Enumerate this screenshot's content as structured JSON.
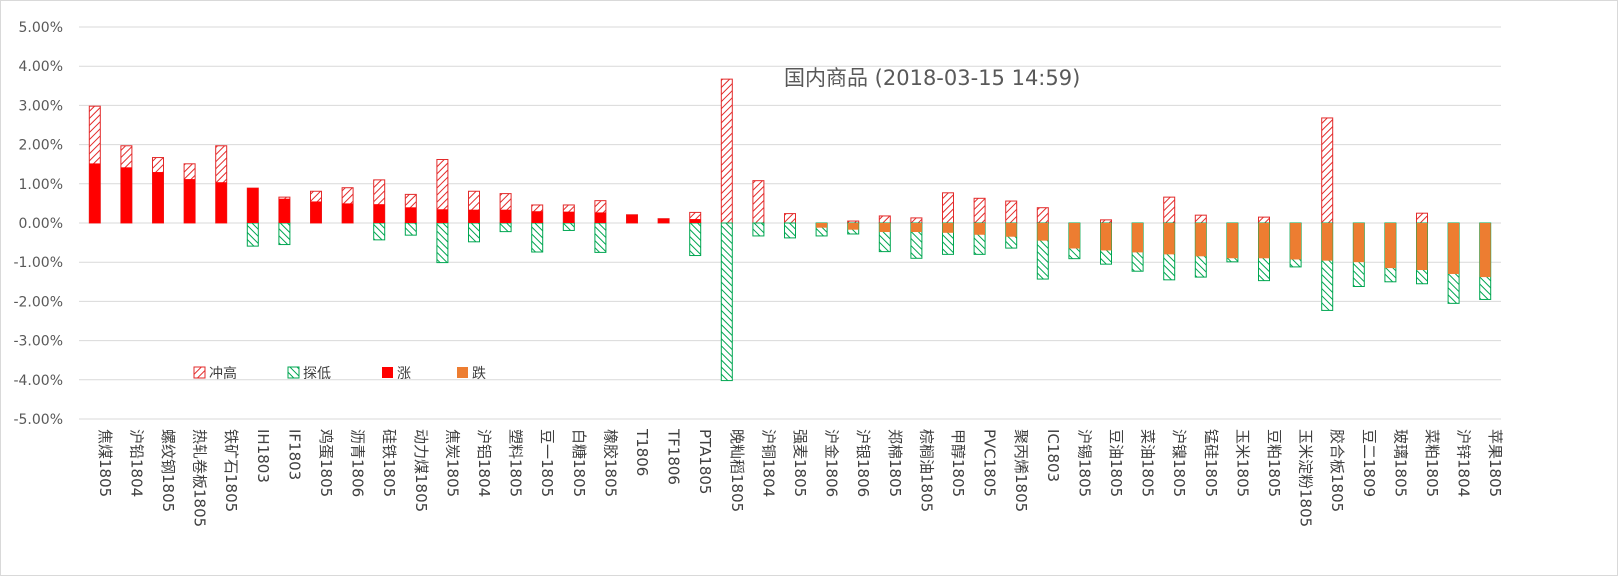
{
  "chart_data": {
    "type": "bar",
    "title": "国内商品 (2018-03-15 14:59)",
    "xlabel": "",
    "ylabel": "",
    "ylim": [
      -0.05,
      0.05
    ],
    "ytick_values": [
      0.05,
      0.04,
      0.03,
      0.02,
      0.01,
      0,
      -0.01,
      -0.02,
      -0.03,
      -0.04,
      -0.05
    ],
    "ytick_labels": [
      "5.00%",
      "4.00%",
      "3.00%",
      "2.00%",
      "1.00%",
      "0.00%",
      "-1.00%",
      "-2.00%",
      "-3.00%",
      "-4.00%",
      "-5.00%"
    ],
    "grid": true,
    "legend_position": "bottom-left",
    "categories": [
      "焦煤1805",
      "沪铅1804",
      "螺纹钢1805",
      "热轧卷板1805",
      "铁矿石1805",
      "IH1803",
      "IF1803",
      "鸡蛋1805",
      "沥青1806",
      "硅铁1805",
      "动力煤1805",
      "焦炭1805",
      "沪铝1804",
      "塑料1805",
      "豆一1805",
      "白糖1805",
      "橡胶1805",
      "T1806",
      "TF1806",
      "PTA1805",
      "晚籼稻1805",
      "沪铜1804",
      "强麦1805",
      "沪金1806",
      "沪银1806",
      "郑棉1805",
      "棕榈油1805",
      "甲醇1805",
      "PVC1805",
      "聚丙烯1805",
      "IC1803",
      "沪锡1805",
      "豆油1805",
      "菜油1805",
      "沪镍1805",
      "锰硅1805",
      "玉米1805",
      "豆粕1805",
      "玉米淀粉1805",
      "胶合板1805",
      "豆二1809",
      "玻璃1805",
      "菜粕1805",
      "沪锌1804",
      "苹果1805"
    ],
    "series": [
      {
        "name": "冲高",
        "pattern": "up-hatch",
        "values": [
          0.0298,
          0.0197,
          0.0167,
          0.0151,
          0.0197,
          0.0089,
          0.0066,
          0.0081,
          0.009,
          0.011,
          0.0073,
          0.0162,
          0.0081,
          0.0075,
          0.0046,
          0.0046,
          0.0057,
          0.0021,
          0.0011,
          0.0027,
          0.0367,
          0.0108,
          0.0024,
          0.0,
          0.0005,
          0.0018,
          0.0013,
          0.0077,
          0.0063,
          0.0056,
          0.0039,
          0.0,
          0.0008,
          0.0,
          0.0066,
          0.002,
          0.0,
          0.0015,
          0.0,
          0.0268,
          0.0,
          0.0,
          0.0025,
          0.0,
          0.0
        ]
      },
      {
        "name": "探低",
        "pattern": "down-hatch",
        "values": [
          0.0,
          0.0,
          0.0,
          0.0,
          0.0,
          -0.0059,
          -0.0055,
          0.0,
          0.0,
          -0.0043,
          -0.0031,
          -0.0101,
          -0.0048,
          -0.0022,
          -0.0074,
          -0.0019,
          -0.0075,
          0.0,
          0.0,
          -0.0083,
          -0.0402,
          -0.0033,
          -0.0038,
          -0.0033,
          -0.0028,
          -0.0073,
          -0.009,
          -0.008,
          -0.008,
          -0.0064,
          -0.0143,
          -0.0091,
          -0.0105,
          -0.0123,
          -0.0145,
          -0.0138,
          -0.0099,
          -0.0147,
          -0.0112,
          -0.0223,
          -0.0162,
          -0.015,
          -0.0155,
          -0.0205,
          -0.0195
        ]
      },
      {
        "name": "涨",
        "color": "#ff0000",
        "values": [
          0.0152,
          0.0142,
          0.013,
          0.0112,
          0.0104,
          0.0089,
          0.0062,
          0.0055,
          0.005,
          0.0048,
          0.004,
          0.0035,
          0.0034,
          0.0034,
          0.003,
          0.0029,
          0.0027,
          0.0021,
          0.0011,
          0.001,
          0.0,
          0.0,
          0.0,
          0.0,
          0.0,
          0.0,
          0.0,
          0.0,
          0.0,
          0.0,
          0.0,
          0.0,
          0.0,
          0.0,
          0.0,
          0.0,
          0.0,
          0.0,
          0.0,
          0.0,
          0.0,
          0.0,
          0.0,
          0.0,
          0.0
        ]
      },
      {
        "name": "跌",
        "color": "#ed7d31",
        "values": [
          0.0,
          0.0,
          0.0,
          0.0,
          0.0,
          0.0,
          0.0,
          0.0,
          0.0,
          0.0,
          0.0,
          0.0,
          0.0,
          0.0,
          0.0,
          0.0,
          0.0,
          0.0,
          0.0,
          0.0,
          0.0,
          0.0,
          0.0,
          -0.0012,
          -0.0017,
          -0.0023,
          -0.0023,
          -0.0025,
          -0.003,
          -0.0035,
          -0.0045,
          -0.0065,
          -0.007,
          -0.0075,
          -0.008,
          -0.0085,
          -0.009,
          -0.009,
          -0.0093,
          -0.0096,
          -0.01,
          -0.0115,
          -0.012,
          -0.013,
          -0.0138
        ]
      }
    ],
    "colors": {
      "up": "#ff0000",
      "down_hatch": "#00a651",
      "down": "#ed7d31",
      "grid": "#d9d9d9",
      "axis_text": "#595959"
    }
  }
}
